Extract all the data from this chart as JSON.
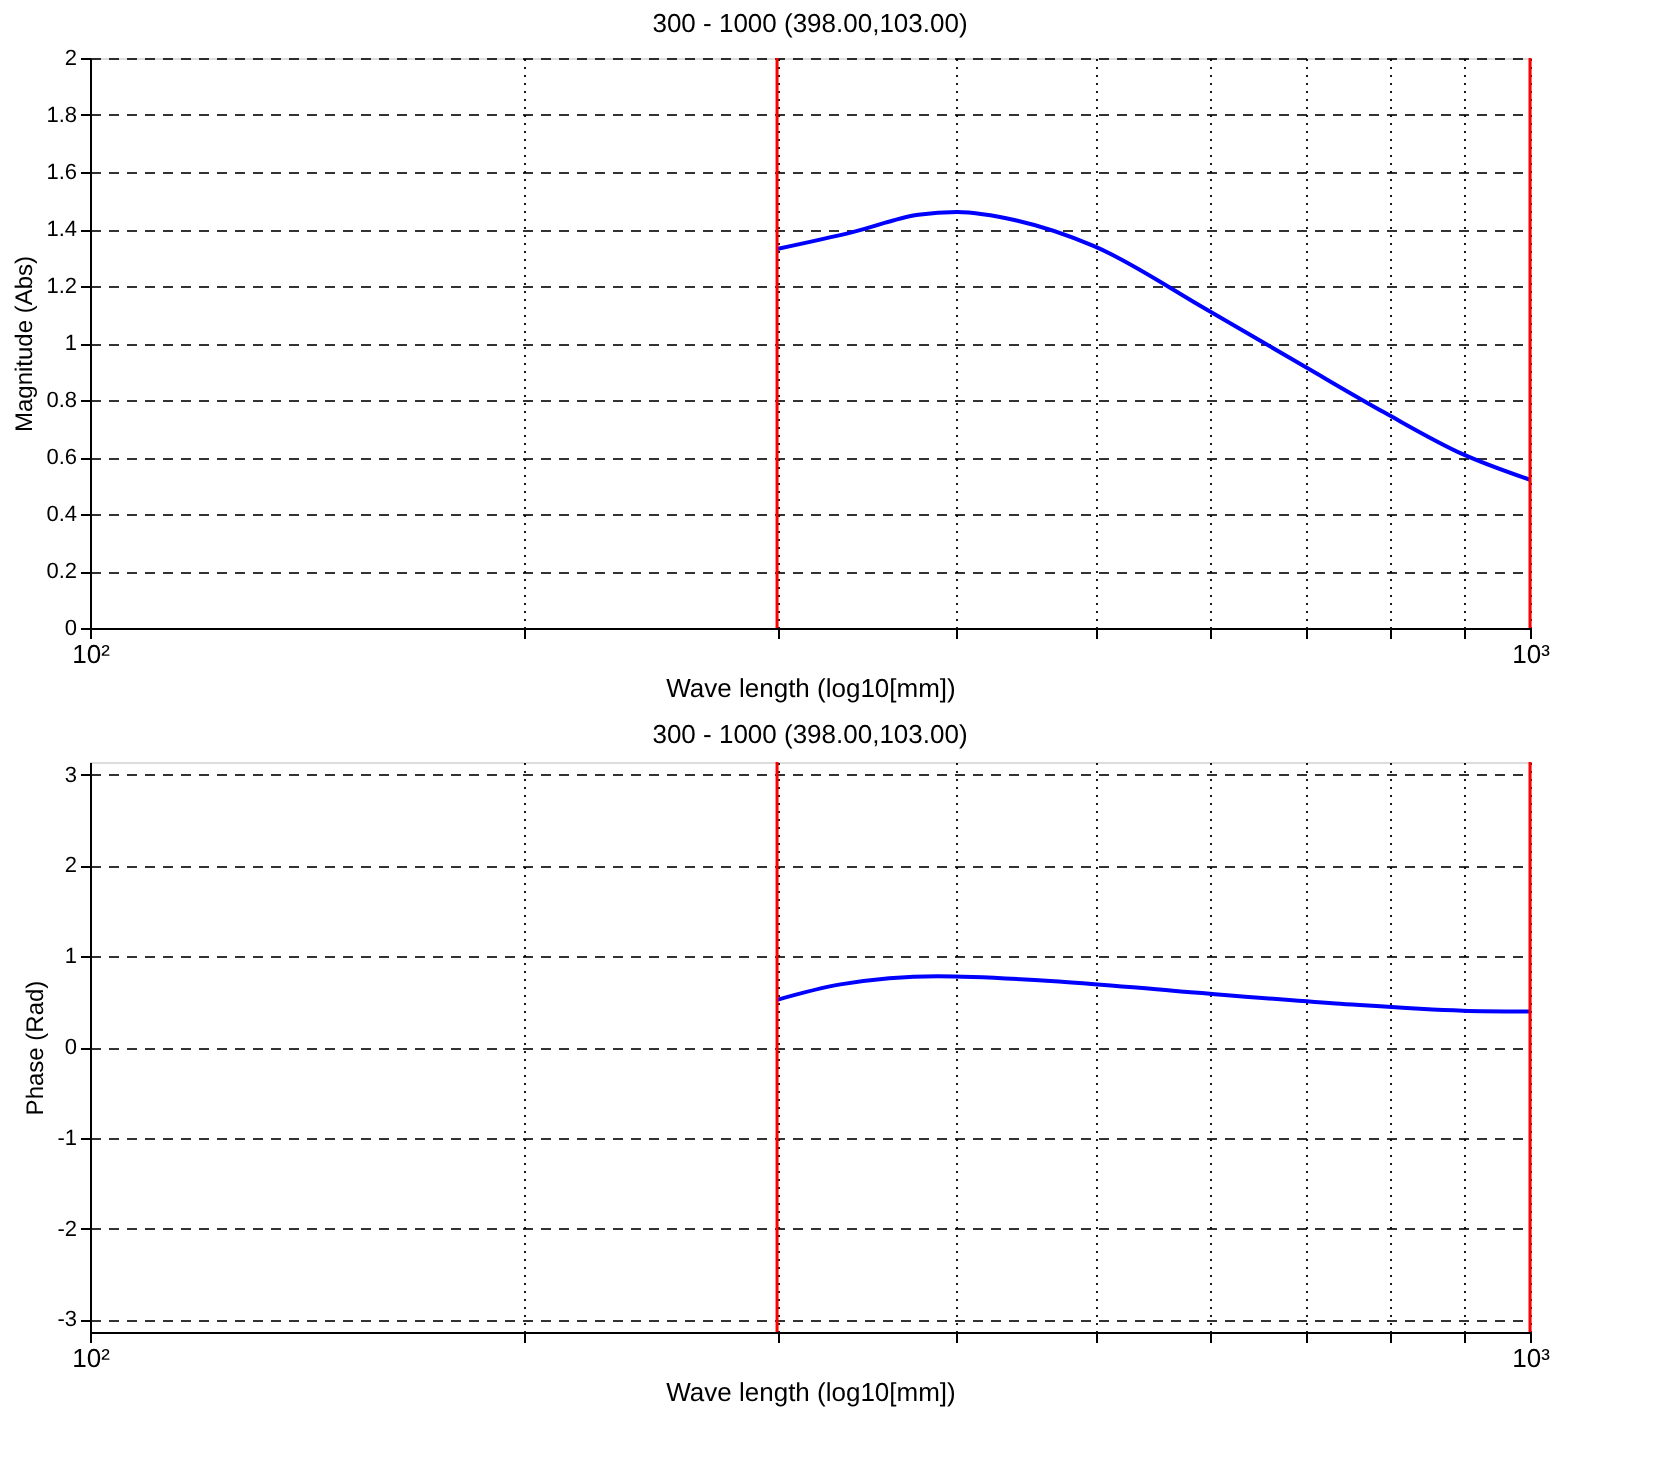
{
  "chart_data": [
    {
      "type": "line",
      "title": "300 - 1000 (398.00,103.00)",
      "xlabel": "Wave length (log10[mm])",
      "ylabel": "Magnitude (Abs)",
      "log": "x",
      "grid": true,
      "line_style": "solid",
      "x": [
        300,
        339,
        376,
        400,
        440,
        498,
        595,
        696,
        793,
        898,
        1000
      ],
      "series": [
        {
          "color": "#0000ff",
          "values": [
            1.33,
            1.39,
            1.45,
            1.46,
            1.43,
            1.34,
            1.12,
            0.92,
            0.755,
            0.61,
            0.52
          ]
        }
      ],
      "xlim": [
        100,
        1000
      ],
      "xticks": [
        {
          "value": 100,
          "label": "10²"
        },
        {
          "value": 200,
          "label": null
        },
        {
          "value": 300,
          "label": null
        },
        {
          "value": 400,
          "label": null
        },
        {
          "value": 500,
          "label": null
        },
        {
          "value": 600,
          "label": null
        },
        {
          "value": 700,
          "label": null
        },
        {
          "value": 800,
          "label": null
        },
        {
          "value": 900,
          "label": null
        },
        {
          "value": 1000,
          "label": "10³"
        }
      ],
      "ylim": [
        0,
        2
      ],
      "yticks": [
        0,
        0.2,
        0.4,
        0.6,
        0.8,
        1,
        1.2,
        1.4,
        1.6,
        1.8,
        2
      ],
      "ref_lines": [
        {
          "axis": "x",
          "value": 300,
          "color": "#ff0000"
        },
        {
          "axis": "x",
          "value": 1000,
          "color": "#ff0000"
        }
      ]
    },
    {
      "type": "line",
      "title": "300 - 1000 (398.00,103.00)",
      "xlabel": "Wave length (log10[mm])",
      "ylabel": "Phase (Rad)",
      "log": "x",
      "grid": true,
      "line_style": "solid",
      "x": [
        300,
        332,
        388,
        473,
        565,
        733,
        898,
        1000
      ],
      "series": [
        {
          "color": "#0000ff",
          "values": [
            0.52,
            0.69,
            0.78,
            0.72,
            0.62,
            0.48,
            0.4,
            0.39
          ]
        }
      ],
      "xlim": [
        100,
        1000
      ],
      "xticks": [
        {
          "value": 100,
          "label": "10²"
        },
        {
          "value": 200,
          "label": null
        },
        {
          "value": 300,
          "label": null
        },
        {
          "value": 400,
          "label": null
        },
        {
          "value": 500,
          "label": null
        },
        {
          "value": 600,
          "label": null
        },
        {
          "value": 700,
          "label": null
        },
        {
          "value": 800,
          "label": null
        },
        {
          "value": 900,
          "label": null
        },
        {
          "value": 1000,
          "label": "10³"
        }
      ],
      "ylim": [
        -3.14,
        3.14
      ],
      "yticks": [
        -3,
        -2,
        -1,
        0,
        1,
        2,
        3
      ],
      "ref_lines": [
        {
          "axis": "x",
          "value": 300,
          "color": "#ff0000"
        },
        {
          "axis": "x",
          "value": 1000,
          "color": "#ff0000"
        }
      ]
    }
  ]
}
